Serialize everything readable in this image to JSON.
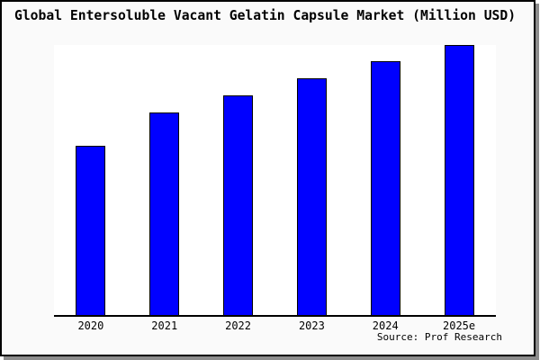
{
  "colors": {
    "bar_fill": "#0000ff",
    "bar_border": "#000000",
    "plot_background": "#ffffff",
    "page_background": "#fafafa",
    "frame_border": "#000000",
    "frame_shadow": "#8c8c8c",
    "text": "#000000"
  },
  "chart_data": {
    "type": "bar",
    "title": "Global Entersoluble Vacant Gelatin Capsule Market (Million USD)",
    "categories": [
      "2020",
      "2021",
      "2022",
      "2023",
      "2024",
      "2025e"
    ],
    "values": [
      62.7,
      75.0,
      81.3,
      87.7,
      94.0,
      100.0
    ],
    "value_scale_note": "no y-axis or data labels shown; values are relative bar heights with 2025e = 100",
    "xlabel": "",
    "ylabel": "",
    "ylim": [
      0,
      100
    ],
    "grid": false,
    "legend": false,
    "y_axis_visible": false,
    "bar_color": "#0000ff",
    "source": "Source: Prof Research"
  }
}
